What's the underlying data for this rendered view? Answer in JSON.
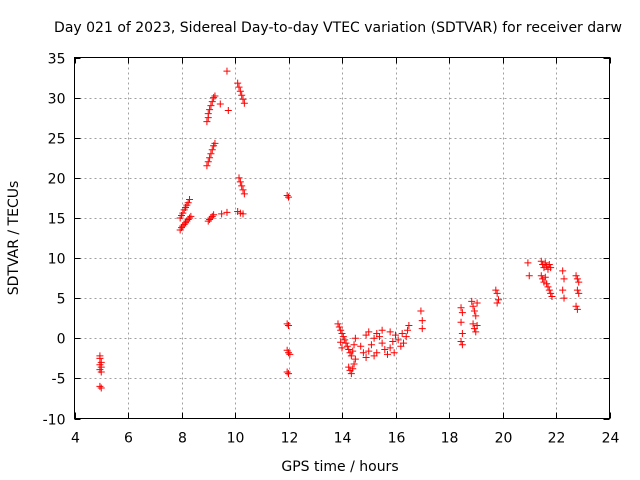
{
  "chart_data": {
    "type": "scatter",
    "title": "Day 021 of 2023, Sidereal Day-to-day VTEC variation (SDTVAR) for receiver darw",
    "xlabel": "GPS time / hours",
    "ylabel": "SDTVAR / TECUs",
    "xlim": [
      4,
      24
    ],
    "ylim": [
      -10,
      35
    ],
    "xticks": [
      4,
      6,
      8,
      10,
      12,
      14,
      16,
      18,
      20,
      22,
      24
    ],
    "yticks": [
      -10,
      -5,
      0,
      5,
      10,
      15,
      20,
      25,
      30,
      35
    ],
    "grid": true,
    "marker": "+",
    "color": "#ff0000",
    "series": [
      {
        "name": "SDTVAR",
        "points": [
          [
            4.95,
            -2.2
          ],
          [
            4.95,
            -2.5
          ],
          [
            5.0,
            -3.0
          ],
          [
            4.95,
            -3.3
          ],
          [
            5.0,
            -3.6
          ],
          [
            4.95,
            -3.9
          ],
          [
            5.0,
            -4.2
          ],
          [
            4.95,
            -6.0
          ],
          [
            5.0,
            -6.2
          ],
          [
            7.95,
            13.5
          ],
          [
            8.0,
            13.8
          ],
          [
            8.05,
            14.0
          ],
          [
            8.1,
            14.2
          ],
          [
            8.15,
            14.4
          ],
          [
            8.2,
            14.6
          ],
          [
            8.25,
            14.8
          ],
          [
            8.3,
            15.0
          ],
          [
            8.35,
            15.2
          ],
          [
            7.95,
            15.0
          ],
          [
            8.0,
            15.3
          ],
          [
            8.05,
            15.6
          ],
          [
            8.1,
            16.0
          ],
          [
            8.15,
            16.3
          ],
          [
            8.2,
            16.6
          ],
          [
            8.25,
            16.9
          ],
          [
            8.3,
            17.3
          ],
          [
            8.95,
            27.0
          ],
          [
            9.0,
            27.5
          ],
          [
            9.0,
            28.0
          ],
          [
            9.05,
            28.5
          ],
          [
            9.1,
            29.0
          ],
          [
            9.15,
            29.5
          ],
          [
            9.2,
            30.0
          ],
          [
            9.25,
            30.2
          ],
          [
            8.95,
            21.5
          ],
          [
            9.0,
            22.0
          ],
          [
            9.05,
            22.5
          ],
          [
            9.1,
            23.0
          ],
          [
            9.15,
            23.5
          ],
          [
            9.2,
            24.0
          ],
          [
            9.25,
            24.3
          ],
          [
            9.0,
            14.6
          ],
          [
            9.05,
            14.8
          ],
          [
            9.1,
            15.0
          ],
          [
            9.15,
            15.2
          ],
          [
            9.2,
            15.4
          ],
          [
            9.45,
            29.2
          ],
          [
            9.5,
            15.5
          ],
          [
            9.7,
            15.7
          ],
          [
            9.7,
            33.3
          ],
          [
            9.75,
            28.4
          ],
          [
            10.1,
            31.8
          ],
          [
            10.15,
            31.3
          ],
          [
            10.2,
            30.8
          ],
          [
            10.25,
            30.3
          ],
          [
            10.3,
            29.8
          ],
          [
            10.35,
            29.3
          ],
          [
            10.15,
            20.0
          ],
          [
            10.2,
            19.5
          ],
          [
            10.25,
            19.0
          ],
          [
            10.3,
            18.5
          ],
          [
            10.35,
            18.0
          ],
          [
            10.1,
            15.8
          ],
          [
            10.2,
            15.6
          ],
          [
            10.3,
            15.5
          ],
          [
            11.95,
            17.8
          ],
          [
            12.0,
            17.6
          ],
          [
            11.95,
            1.8
          ],
          [
            12.0,
            1.6
          ],
          [
            11.95,
            -1.5
          ],
          [
            12.0,
            -1.8
          ],
          [
            12.05,
            -2.0
          ],
          [
            11.95,
            -4.2
          ],
          [
            12.0,
            -4.4
          ],
          [
            13.85,
            1.8
          ],
          [
            13.9,
            1.4
          ],
          [
            13.95,
            1.0
          ],
          [
            14.0,
            0.6
          ],
          [
            14.05,
            0.2
          ],
          [
            14.1,
            -0.2
          ],
          [
            14.15,
            -0.6
          ],
          [
            14.2,
            -1.0
          ],
          [
            14.25,
            -1.4
          ],
          [
            14.3,
            -1.8
          ],
          [
            14.35,
            -2.2
          ],
          [
            14.4,
            -1.6
          ],
          [
            14.45,
            -0.8
          ],
          [
            14.5,
            0.0
          ],
          [
            13.95,
            -0.5
          ],
          [
            14.0,
            -1.2
          ],
          [
            14.25,
            -3.6
          ],
          [
            14.3,
            -4.0
          ],
          [
            14.35,
            -4.4
          ],
          [
            14.4,
            -3.8
          ],
          [
            14.45,
            -3.2
          ],
          [
            14.5,
            -2.6
          ],
          [
            14.7,
            -1.0
          ],
          [
            14.8,
            -1.8
          ],
          [
            14.9,
            -2.4
          ],
          [
            15.0,
            -1.6
          ],
          [
            15.1,
            -0.8
          ],
          [
            15.2,
            0.0
          ],
          [
            15.3,
            0.6
          ],
          [
            15.4,
            0.2
          ],
          [
            15.5,
            -0.6
          ],
          [
            15.6,
            -1.4
          ],
          [
            15.7,
            -2.0
          ],
          [
            15.8,
            -1.2
          ],
          [
            15.9,
            -0.4
          ],
          [
            16.0,
            0.4
          ],
          [
            16.1,
            -0.2
          ],
          [
            16.2,
            -1.0
          ],
          [
            16.3,
            -0.6
          ],
          [
            16.4,
            0.2
          ],
          [
            16.45,
            1.0
          ],
          [
            16.5,
            1.6
          ],
          [
            15.0,
            0.8
          ],
          [
            15.2,
            -2.2
          ],
          [
            15.5,
            1.0
          ],
          [
            15.8,
            0.8
          ],
          [
            14.9,
            0.4
          ],
          [
            15.3,
            -1.8
          ],
          [
            15.95,
            -1.8
          ],
          [
            16.25,
            0.6
          ],
          [
            16.95,
            3.4
          ],
          [
            17.0,
            2.2
          ],
          [
            17.0,
            1.2
          ],
          [
            18.45,
            3.8
          ],
          [
            18.5,
            3.2
          ],
          [
            18.45,
            2.0
          ],
          [
            18.5,
            0.6
          ],
          [
            18.45,
            -0.4
          ],
          [
            18.5,
            -0.8
          ],
          [
            18.85,
            4.6
          ],
          [
            18.9,
            4.0
          ],
          [
            18.95,
            3.4
          ],
          [
            19.0,
            2.8
          ],
          [
            19.05,
            4.4
          ],
          [
            18.9,
            1.8
          ],
          [
            18.95,
            1.2
          ],
          [
            19.0,
            0.8
          ],
          [
            19.05,
            1.6
          ],
          [
            19.75,
            6.0
          ],
          [
            19.8,
            5.6
          ],
          [
            19.85,
            4.8
          ],
          [
            19.8,
            4.4
          ],
          [
            20.95,
            9.4
          ],
          [
            21.0,
            7.8
          ],
          [
            21.45,
            9.6
          ],
          [
            21.5,
            9.2
          ],
          [
            21.55,
            8.8
          ],
          [
            21.6,
            9.4
          ],
          [
            21.65,
            9.0
          ],
          [
            21.7,
            8.6
          ],
          [
            21.75,
            9.2
          ],
          [
            21.8,
            8.8
          ],
          [
            21.45,
            7.8
          ],
          [
            21.5,
            7.4
          ],
          [
            21.55,
            7.0
          ],
          [
            21.6,
            7.6
          ],
          [
            21.65,
            6.8
          ],
          [
            21.7,
            6.4
          ],
          [
            21.75,
            6.0
          ],
          [
            21.8,
            5.6
          ],
          [
            21.85,
            5.2
          ],
          [
            22.25,
            8.4
          ],
          [
            22.3,
            7.4
          ],
          [
            22.25,
            6.0
          ],
          [
            22.3,
            5.0
          ],
          [
            22.75,
            7.8
          ],
          [
            22.8,
            7.4
          ],
          [
            22.85,
            7.0
          ],
          [
            22.8,
            6.0
          ],
          [
            22.85,
            5.6
          ],
          [
            22.75,
            4.0
          ],
          [
            22.8,
            3.6
          ]
        ]
      }
    ]
  }
}
